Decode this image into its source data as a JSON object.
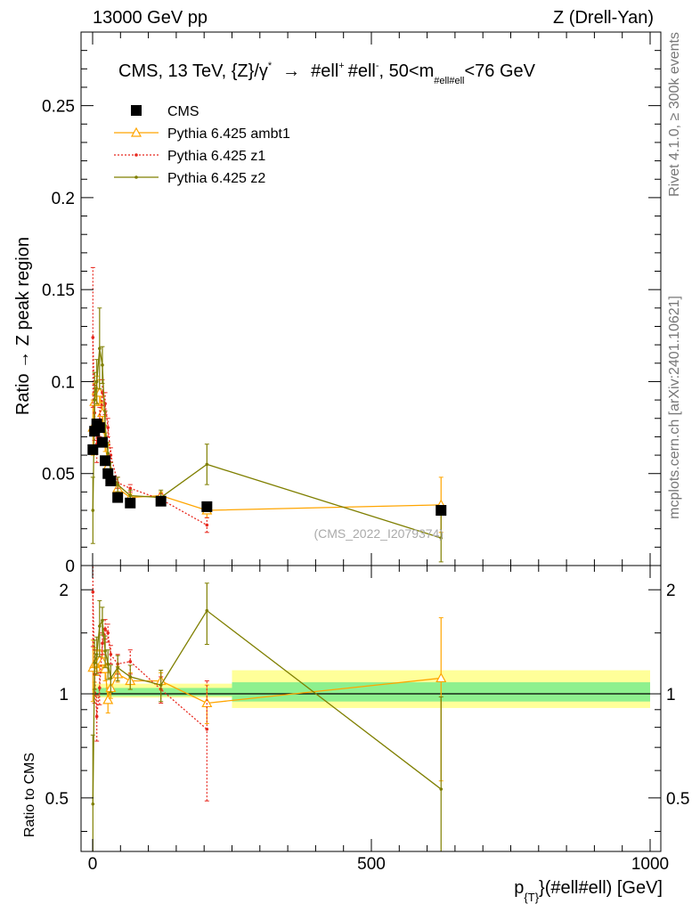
{
  "header": {
    "beam": "13000 GeV pp",
    "process": "Z (Drell-Yan)"
  },
  "side_labels": {
    "rivet": "Rivet 4.1.0, ≥ 300k events",
    "mcplots": "mcplots.cern.ch [arXiv:2401.10621]"
  },
  "watermark": "(CMS_2022_I2079374)",
  "chart_data": [
    {
      "type": "scatter",
      "panel": "main",
      "title": "CMS, 13 TeV, {Z}/γ* → #ell⁺ #ell⁻, 50<m#ell#ell<76 GeV",
      "title_parts": {
        "pre": "CMS, 13 TeV, {Z}/γ",
        "star": "*",
        "arrow": "→",
        "ell1": "#ell",
        "plus": "+",
        "ell2": "#ell",
        "minus": "-",
        "range_pre": ", 50<m",
        "mass_sub": "#ell#ell",
        "range_post": "<76 GeV"
      },
      "ylabel": "Ratio → Z peak region",
      "xlim": [
        -5,
        1000
      ],
      "ylim": [
        0,
        0.29
      ],
      "y_ticks": [
        0,
        0.05,
        0.1,
        0.15,
        0.2,
        0.25
      ],
      "y_tick_labels": [
        "0",
        "0.05",
        "0.1",
        "0.15",
        "0.2",
        "0.25"
      ],
      "legend_position": "top-left",
      "series": [
        {
          "name": "CMS",
          "color": "#000000",
          "marker": "square",
          "x": [
            0.5,
            3.5,
            7.5,
            12.5,
            17.5,
            22.5,
            27.5,
            32.5,
            45,
            67.5,
            122.5,
            205,
            625
          ],
          "y": [
            0.063,
            0.073,
            0.077,
            0.075,
            0.067,
            0.057,
            0.05,
            0.046,
            0.037,
            0.034,
            0.035,
            0.032,
            0.03
          ]
        },
        {
          "name": "Pythia 6.425 ambt1",
          "color": "#ffa500",
          "marker": "triangle",
          "x": [
            0.5,
            3.5,
            7.5,
            12.5,
            17.5,
            22.5,
            27.5,
            32.5,
            45,
            67.5,
            122.5,
            205,
            625
          ],
          "y": [
            0.075,
            0.089,
            0.095,
            0.094,
            0.083,
            0.067,
            0.054,
            0.048,
            0.042,
            0.037,
            0.038,
            0.03,
            0.033
          ],
          "err": [
            0.015,
            0.01,
            0.008,
            0.007,
            0.006,
            0.005,
            0.004,
            0.003,
            0.002,
            0.002,
            0.002,
            0.004,
            0.015
          ]
        },
        {
          "name": "Pythia 6.425 z1",
          "color": "#e8281e",
          "marker": "dot",
          "dashed": true,
          "x": [
            0.5,
            3.5,
            7.5,
            12.5,
            17.5,
            22.5,
            27.5,
            32.5,
            45,
            67.5,
            122.5,
            205
          ],
          "y": [
            0.124,
            0.083,
            0.066,
            0.078,
            0.094,
            0.088,
            0.075,
            0.06,
            0.045,
            0.042,
            0.036,
            0.022
          ],
          "err": [
            0.038,
            0.015,
            0.01,
            0.008,
            0.007,
            0.006,
            0.005,
            0.004,
            0.003,
            0.002,
            0.003,
            0.004
          ]
        },
        {
          "name": "Pythia 6.425 z2",
          "color": "#7f7f00",
          "marker": "dot",
          "x": [
            0.5,
            3.5,
            7.5,
            12.5,
            17.5,
            22.5,
            27.5,
            32.5,
            45,
            67.5,
            122.5,
            205,
            625
          ],
          "y": [
            0.03,
            0.09,
            0.1,
            0.118,
            0.109,
            0.076,
            0.061,
            0.051,
            0.044,
            0.038,
            0.037,
            0.055,
            0.015
          ],
          "err": [
            0.018,
            0.015,
            0.012,
            0.022,
            0.01,
            0.008,
            0.006,
            0.005,
            0.004,
            0.003,
            0.004,
            0.011,
            0.013
          ]
        }
      ]
    },
    {
      "type": "line",
      "panel": "ratio",
      "xlabel": "p_{T}(#ell#ell) [GeV]",
      "xlabel_parts": {
        "pre": "p",
        "sub": "{T}",
        "post": "}(#ell#ell) [GeV]"
      },
      "ylabel": "Ratio to CMS",
      "xlim": [
        -5,
        1000
      ],
      "ylim": [
        0.35,
        2.35
      ],
      "log_y": true,
      "x_ticks": [
        0,
        500,
        1000
      ],
      "x_tick_labels": [
        "0",
        "500",
        "1000"
      ],
      "y_ticks": [
        0.5,
        1,
        2
      ],
      "y_tick_labels": [
        "0.5",
        "1",
        "2"
      ],
      "bands": [
        {
          "x0": 0,
          "x1": 250,
          "yel_lo": 0.975,
          "yel_hi": 1.07,
          "grn_lo": 0.985,
          "grn_hi": 1.04
        },
        {
          "x0": 250,
          "x1": 1000,
          "yel_lo": 0.91,
          "yel_hi": 1.17,
          "grn_lo": 0.95,
          "grn_hi": 1.08
        }
      ],
      "series": [
        {
          "name": "Pythia 6.425 ambt1",
          "color": "#ffa500",
          "marker": "triangle",
          "x": [
            0.5,
            3.5,
            7.5,
            12.5,
            17.5,
            22.5,
            27.5,
            32.5,
            45,
            67.5,
            122.5,
            205,
            625
          ],
          "y": [
            1.19,
            1.22,
            1.23,
            1.25,
            1.24,
            1.18,
            0.96,
            1.04,
            1.14,
            1.09,
            1.09,
            0.94,
            1.11
          ],
          "err": [
            0.24,
            0.14,
            0.1,
            0.09,
            0.09,
            0.09,
            0.08,
            0.07,
            0.06,
            0.06,
            0.06,
            0.12,
            0.55
          ]
        },
        {
          "name": "Pythia 6.425 z1",
          "color": "#e8281e",
          "marker": "dot",
          "dashed": true,
          "x": [
            0.5,
            3.5,
            7.5,
            12.5,
            17.5,
            22.5,
            27.5,
            32.5,
            45,
            67.5,
            122.5,
            205
          ],
          "y": [
            1.97,
            1.14,
            0.86,
            1.04,
            1.4,
            1.54,
            1.5,
            1.3,
            1.22,
            1.24,
            1.03,
            0.79
          ],
          "err": [
            0.6,
            0.2,
            0.13,
            0.11,
            0.1,
            0.1,
            0.09,
            0.08,
            0.08,
            0.1,
            0.09,
            0.3
          ]
        },
        {
          "name": "Pythia 6.425 z2",
          "color": "#7f7f00",
          "marker": "dot",
          "x": [
            0.5,
            3.5,
            7.5,
            12.5,
            17.5,
            22.5,
            27.5,
            32.5,
            45,
            67.5,
            122.5,
            205,
            625
          ],
          "y": [
            0.48,
            1.23,
            1.3,
            1.57,
            1.63,
            1.33,
            1.22,
            1.11,
            1.19,
            1.12,
            1.06,
            1.74,
            0.53
          ],
          "err": [
            0.28,
            0.2,
            0.16,
            0.29,
            0.15,
            0.14,
            0.12,
            0.1,
            0.1,
            0.09,
            0.11,
            0.35,
            0.45
          ]
        }
      ]
    }
  ]
}
